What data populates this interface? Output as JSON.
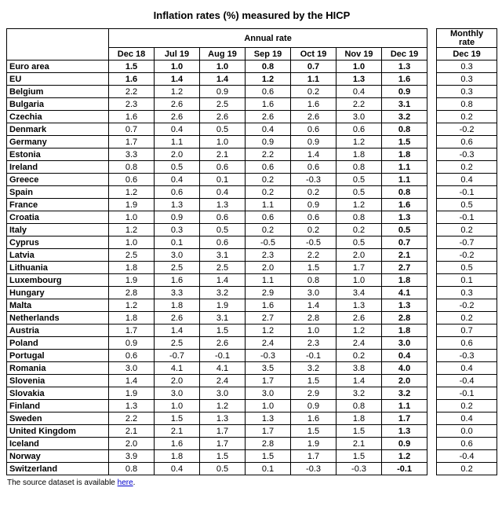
{
  "title": "Inflation rates (%) measured by the HICP",
  "table": {
    "annual_header": "Annual rate",
    "monthly_header_line1": "Monthly",
    "monthly_header_line2": "rate",
    "annual_columns": [
      "Dec 18",
      "Jul 19",
      "Aug 19",
      "Sep 19",
      "Oct 19",
      "Nov 19",
      "Dec 19"
    ],
    "monthly_column": "Dec 19",
    "rows": [
      {
        "name": "Euro area",
        "bold": true,
        "annual": [
          "1.5",
          "1.0",
          "1.0",
          "0.8",
          "0.7",
          "1.0",
          "1.3"
        ],
        "monthly": "0.3"
      },
      {
        "name": "EU",
        "bold": true,
        "annual": [
          "1.6",
          "1.4",
          "1.4",
          "1.2",
          "1.1",
          "1.3",
          "1.6"
        ],
        "monthly": "0.3"
      },
      {
        "name": "Belgium",
        "bold": false,
        "annual": [
          "2.2",
          "1.2",
          "0.9",
          "0.6",
          "0.2",
          "0.4",
          "0.9"
        ],
        "monthly": "0.3"
      },
      {
        "name": "Bulgaria",
        "bold": false,
        "annual": [
          "2.3",
          "2.6",
          "2.5",
          "1.6",
          "1.6",
          "2.2",
          "3.1"
        ],
        "monthly": "0.8"
      },
      {
        "name": "Czechia",
        "bold": false,
        "annual": [
          "1.6",
          "2.6",
          "2.6",
          "2.6",
          "2.6",
          "3.0",
          "3.2"
        ],
        "monthly": "0.2"
      },
      {
        "name": "Denmark",
        "bold": false,
        "annual": [
          "0.7",
          "0.4",
          "0.5",
          "0.4",
          "0.6",
          "0.6",
          "0.8"
        ],
        "monthly": "-0.2"
      },
      {
        "name": "Germany",
        "bold": false,
        "annual": [
          "1.7",
          "1.1",
          "1.0",
          "0.9",
          "0.9",
          "1.2",
          "1.5"
        ],
        "monthly": "0.6"
      },
      {
        "name": "Estonia",
        "bold": false,
        "annual": [
          "3.3",
          "2.0",
          "2.1",
          "2.2",
          "1.4",
          "1.8",
          "1.8"
        ],
        "monthly": "-0.3"
      },
      {
        "name": "Ireland",
        "bold": false,
        "annual": [
          "0.8",
          "0.5",
          "0.6",
          "0.6",
          "0.6",
          "0.8",
          "1.1"
        ],
        "monthly": "0.2"
      },
      {
        "name": "Greece",
        "bold": false,
        "annual": [
          "0.6",
          "0.4",
          "0.1",
          "0.2",
          "-0.3",
          "0.5",
          "1.1"
        ],
        "monthly": "0.4"
      },
      {
        "name": "Spain",
        "bold": false,
        "annual": [
          "1.2",
          "0.6",
          "0.4",
          "0.2",
          "0.2",
          "0.5",
          "0.8"
        ],
        "monthly": "-0.1"
      },
      {
        "name": "France",
        "bold": false,
        "annual": [
          "1.9",
          "1.3",
          "1.3",
          "1.1",
          "0.9",
          "1.2",
          "1.6"
        ],
        "monthly": "0.5"
      },
      {
        "name": "Croatia",
        "bold": false,
        "annual": [
          "1.0",
          "0.9",
          "0.6",
          "0.6",
          "0.6",
          "0.8",
          "1.3"
        ],
        "monthly": "-0.1"
      },
      {
        "name": "Italy",
        "bold": false,
        "annual": [
          "1.2",
          "0.3",
          "0.5",
          "0.2",
          "0.2",
          "0.2",
          "0.5"
        ],
        "monthly": "0.2"
      },
      {
        "name": "Cyprus",
        "bold": false,
        "annual": [
          "1.0",
          "0.1",
          "0.6",
          "-0.5",
          "-0.5",
          "0.5",
          "0.7"
        ],
        "monthly": "-0.7"
      },
      {
        "name": "Latvia",
        "bold": false,
        "annual": [
          "2.5",
          "3.0",
          "3.1",
          "2.3",
          "2.2",
          "2.0",
          "2.1"
        ],
        "monthly": "-0.2"
      },
      {
        "name": "Lithuania",
        "bold": false,
        "annual": [
          "1.8",
          "2.5",
          "2.5",
          "2.0",
          "1.5",
          "1.7",
          "2.7"
        ],
        "monthly": "0.5"
      },
      {
        "name": "Luxembourg",
        "bold": false,
        "annual": [
          "1.9",
          "1.6",
          "1.4",
          "1.1",
          "0.8",
          "1.0",
          "1.8"
        ],
        "monthly": "0.1"
      },
      {
        "name": "Hungary",
        "bold": false,
        "annual": [
          "2.8",
          "3.3",
          "3.2",
          "2.9",
          "3.0",
          "3.4",
          "4.1"
        ],
        "monthly": "0.3"
      },
      {
        "name": "Malta",
        "bold": false,
        "annual": [
          "1.2",
          "1.8",
          "1.9",
          "1.6",
          "1.4",
          "1.3",
          "1.3"
        ],
        "monthly": "-0.2"
      },
      {
        "name": "Netherlands",
        "bold": false,
        "annual": [
          "1.8",
          "2.6",
          "3.1",
          "2.7",
          "2.8",
          "2.6",
          "2.8"
        ],
        "monthly": "0.2"
      },
      {
        "name": "Austria",
        "bold": false,
        "annual": [
          "1.7",
          "1.4",
          "1.5",
          "1.2",
          "1.0",
          "1.2",
          "1.8"
        ],
        "monthly": "0.7"
      },
      {
        "name": "Poland",
        "bold": false,
        "annual": [
          "0.9",
          "2.5",
          "2.6",
          "2.4",
          "2.3",
          "2.4",
          "3.0"
        ],
        "monthly": "0.6"
      },
      {
        "name": "Portugal",
        "bold": false,
        "annual": [
          "0.6",
          "-0.7",
          "-0.1",
          "-0.3",
          "-0.1",
          "0.2",
          "0.4"
        ],
        "monthly": "-0.3"
      },
      {
        "name": "Romania",
        "bold": false,
        "annual": [
          "3.0",
          "4.1",
          "4.1",
          "3.5",
          "3.2",
          "3.8",
          "4.0"
        ],
        "monthly": "0.4"
      },
      {
        "name": "Slovenia",
        "bold": false,
        "annual": [
          "1.4",
          "2.0",
          "2.4",
          "1.7",
          "1.5",
          "1.4",
          "2.0"
        ],
        "monthly": "-0.4"
      },
      {
        "name": "Slovakia",
        "bold": false,
        "annual": [
          "1.9",
          "3.0",
          "3.0",
          "3.0",
          "2.9",
          "3.2",
          "3.2"
        ],
        "monthly": "-0.1"
      },
      {
        "name": "Finland",
        "bold": false,
        "annual": [
          "1.3",
          "1.0",
          "1.2",
          "1.0",
          "0.9",
          "0.8",
          "1.1"
        ],
        "monthly": "0.2"
      },
      {
        "name": "Sweden",
        "bold": false,
        "annual": [
          "2.2",
          "1.5",
          "1.3",
          "1.3",
          "1.6",
          "1.8",
          "1.7"
        ],
        "monthly": "0.4"
      },
      {
        "name": "United Kingdom",
        "bold": false,
        "annual": [
          "2.1",
          "2.1",
          "1.7",
          "1.7",
          "1.5",
          "1.5",
          "1.3"
        ],
        "monthly": "0.0"
      },
      {
        "name": "Iceland",
        "bold": false,
        "annual": [
          "2.0",
          "1.6",
          "1.7",
          "2.8",
          "1.9",
          "2.1",
          "0.9"
        ],
        "monthly": "0.6"
      },
      {
        "name": "Norway",
        "bold": false,
        "annual": [
          "3.9",
          "1.8",
          "1.5",
          "1.5",
          "1.7",
          "1.5",
          "1.2"
        ],
        "monthly": "-0.4"
      },
      {
        "name": "Switzerland",
        "bold": false,
        "annual": [
          "0.8",
          "0.4",
          "0.5",
          "0.1",
          "-0.3",
          "-0.3",
          "-0.1"
        ],
        "monthly": "0.2"
      }
    ]
  },
  "footer": {
    "prefix": "The source dataset is available ",
    "link_text": "here",
    "suffix": ".",
    "link_color": "#0000cc"
  }
}
